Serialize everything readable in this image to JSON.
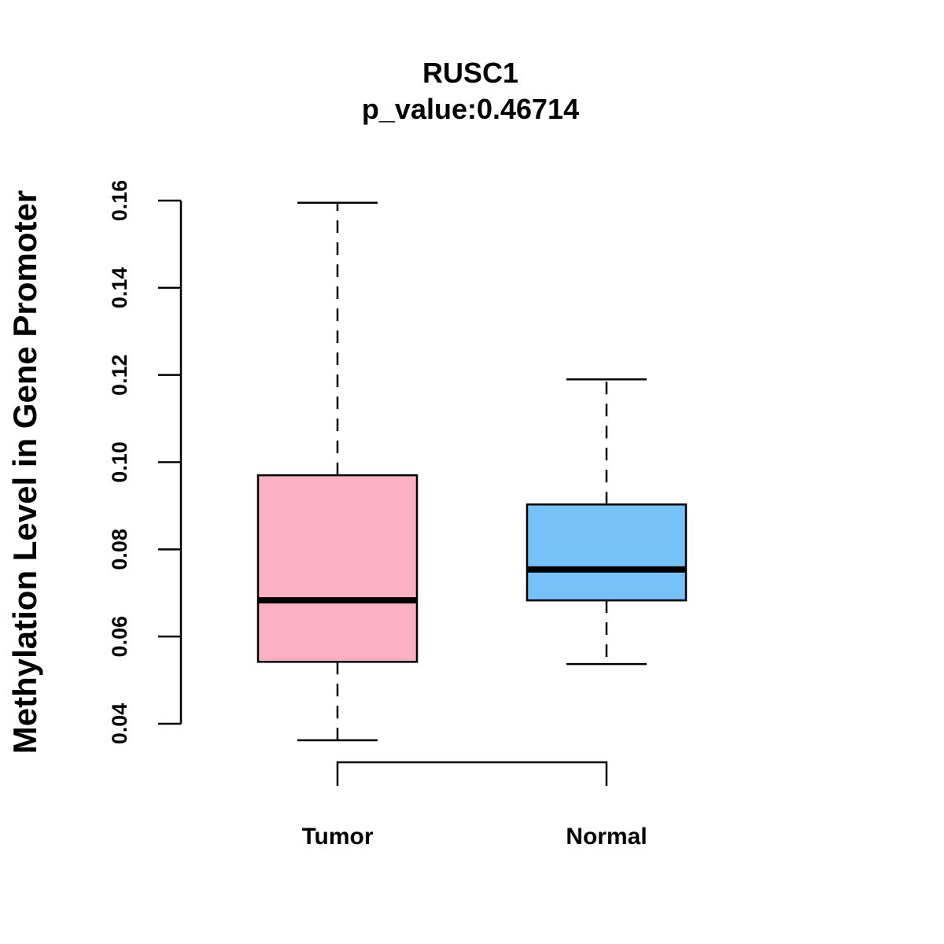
{
  "chart_data": {
    "type": "box",
    "title": "RUSC1",
    "subtitle": "p_value:0.46714",
    "xlabel": "",
    "ylabel": "Methylation Level in Gene Promoter",
    "ylim": [
      0.04,
      0.16
    ],
    "yticks": [
      "0.04",
      "0.06",
      "0.08",
      "0.10",
      "0.12",
      "0.14",
      "0.16"
    ],
    "categories": [
      "Tumor",
      "Normal"
    ],
    "boxes": [
      {
        "name": "Tumor",
        "min": 0.0362,
        "q1": 0.0542,
        "median": 0.0683,
        "q3": 0.097,
        "max": 0.1595,
        "color": "#FBB1C3"
      },
      {
        "name": "Normal",
        "min": 0.0537,
        "q1": 0.0683,
        "median": 0.0754,
        "q3": 0.0903,
        "max": 0.119,
        "color": "#77C1F9"
      }
    ],
    "comparison_bracket": [
      "Tumor",
      "Normal"
    ],
    "grid": false,
    "legend": "none"
  }
}
